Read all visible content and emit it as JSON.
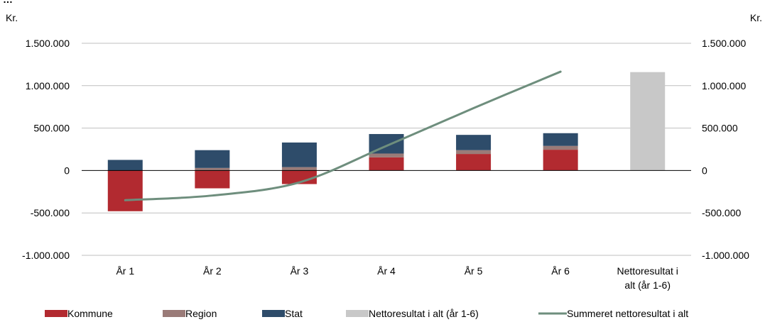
{
  "chart_data": {
    "type": "bar",
    "title_fragment": "…",
    "y_unit_left": "Kr.",
    "y_unit_right": "Kr.",
    "ylim": [
      -1000000,
      1500000
    ],
    "yticks": [
      {
        "value": 1500000,
        "label": "1.500.000"
      },
      {
        "value": 1000000,
        "label": "1.000.000"
      },
      {
        "value": 500000,
        "label": "500.000"
      },
      {
        "value": 0,
        "label": "0"
      },
      {
        "value": -500000,
        "label": "-500.000"
      },
      {
        "value": -1000000,
        "label": "-1.000.000"
      }
    ],
    "grid": true,
    "legend_position": "bottom",
    "categories": [
      {
        "label": "År 1",
        "label_lines": [
          "År 1"
        ]
      },
      {
        "label": "År 2",
        "label_lines": [
          "År 2"
        ]
      },
      {
        "label": "År 3",
        "label_lines": [
          "År 3"
        ]
      },
      {
        "label": "År 4",
        "label_lines": [
          "År 4"
        ]
      },
      {
        "label": "År 5",
        "label_lines": [
          "År 5"
        ]
      },
      {
        "label": "År 6",
        "label_lines": [
          "År 6"
        ]
      },
      {
        "label": "Nettoresultat i alt (år 1-6)",
        "label_lines": [
          "Nettoresultat i",
          "alt (år 1-6)"
        ]
      }
    ],
    "series": [
      {
        "name": "Kommune",
        "kind": "stacked-bar",
        "color": "#b22a30",
        "values": [
          -480000,
          -210000,
          -160000,
          155000,
          195000,
          245000,
          null
        ]
      },
      {
        "name": "Region",
        "kind": "stacked-bar",
        "color": "#9a7b78",
        "values": [
          0,
          30000,
          40000,
          45000,
          45000,
          45000,
          null
        ]
      },
      {
        "name": "Stat",
        "kind": "stacked-bar",
        "color": "#2e4c6a",
        "values": [
          125000,
          210000,
          290000,
          230000,
          180000,
          150000,
          null
        ]
      },
      {
        "name": "Nettoresultat i alt (år 1-6)",
        "kind": "bar",
        "color": "#c8c8c8",
        "values": [
          null,
          null,
          null,
          null,
          null,
          null,
          1160000
        ]
      },
      {
        "name": "Summeret nettoresultat i alt",
        "kind": "line",
        "color": "#6e8e7d",
        "values": [
          -350000,
          -295000,
          -140000,
          290000,
          735000,
          1165000,
          null
        ]
      }
    ]
  }
}
